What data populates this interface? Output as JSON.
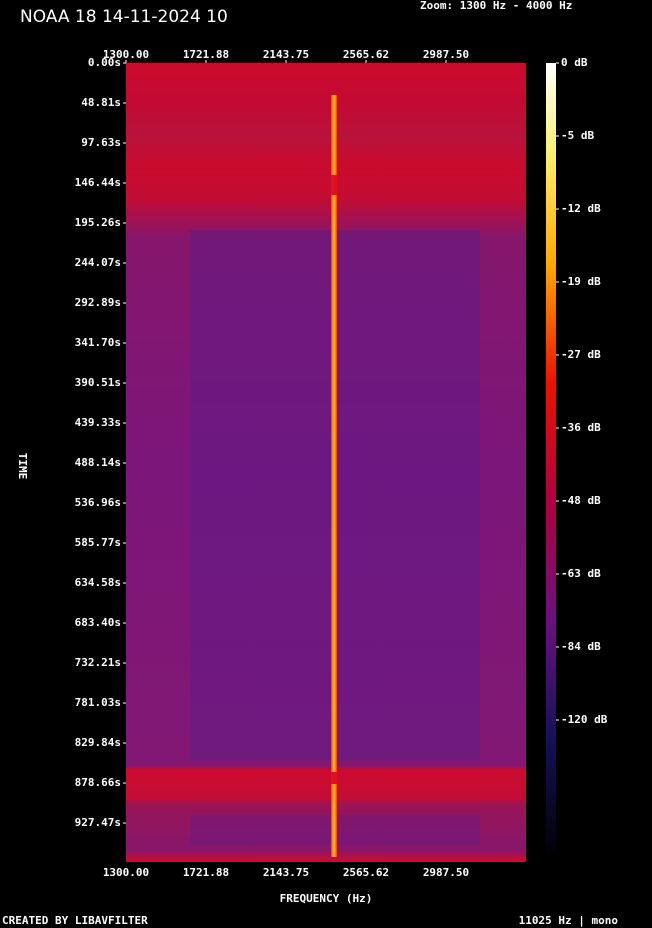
{
  "chart_data": {
    "type": "spectrogram",
    "title": "NOAA 18 14-11-2024 10",
    "subtitle": "Zoom: 1300 Hz - 4000 Hz",
    "x_label": "FREQUENCY (Hz)",
    "y_label": "TIME",
    "xlim": [
      1300,
      3409.375
    ],
    "xticks": [
      {
        "value": 1300,
        "label": "1300.00"
      },
      {
        "value": 1721.88,
        "label": "1721.88"
      },
      {
        "value": 2143.75,
        "label": "2143.75"
      },
      {
        "value": 2565.62,
        "label": "2565.62"
      },
      {
        "value": 2987.5,
        "label": "2987.50"
      }
    ],
    "ylim": [
      0,
      975
    ],
    "yticks": [
      {
        "value": 0,
        "label": "0.00s"
      },
      {
        "value": 48.81,
        "label": "48.81s"
      },
      {
        "value": 97.63,
        "label": "97.63s"
      },
      {
        "value": 146.44,
        "label": "146.44s"
      },
      {
        "value": 195.26,
        "label": "195.26s"
      },
      {
        "value": 244.07,
        "label": "244.07s"
      },
      {
        "value": 292.89,
        "label": "292.89s"
      },
      {
        "value": 341.7,
        "label": "341.70s"
      },
      {
        "value": 390.51,
        "label": "390.51s"
      },
      {
        "value": 439.33,
        "label": "439.33s"
      },
      {
        "value": 488.14,
        "label": "488.14s"
      },
      {
        "value": 536.96,
        "label": "536.96s"
      },
      {
        "value": 585.77,
        "label": "585.77s"
      },
      {
        "value": 634.58,
        "label": "634.58s"
      },
      {
        "value": 683.4,
        "label": "683.40s"
      },
      {
        "value": 732.21,
        "label": "732.21s"
      },
      {
        "value": 781.03,
        "label": "781.03s"
      },
      {
        "value": 829.84,
        "label": "829.84s"
      },
      {
        "value": 878.66,
        "label": "878.66s"
      },
      {
        "value": 927.47,
        "label": "927.47s"
      }
    ],
    "colorbar_ticks": [
      {
        "value": 0,
        "label": "0 dB"
      },
      {
        "value": -5,
        "label": "-5 dB"
      },
      {
        "value": -12,
        "label": "-12 dB"
      },
      {
        "value": -19,
        "label": "-19 dB"
      },
      {
        "value": -27,
        "label": "-27 dB"
      },
      {
        "value": -36,
        "label": "-36 dB"
      },
      {
        "value": -48,
        "label": "-48 dB"
      },
      {
        "value": -63,
        "label": "-63 dB"
      },
      {
        "value": -84,
        "label": "-84 dB"
      },
      {
        "value": -120,
        "label": "-120 dB"
      }
    ],
    "footer_left": "CREATED BY LIBAVFILTER",
    "footer_right": "11025 Hz | mono"
  }
}
